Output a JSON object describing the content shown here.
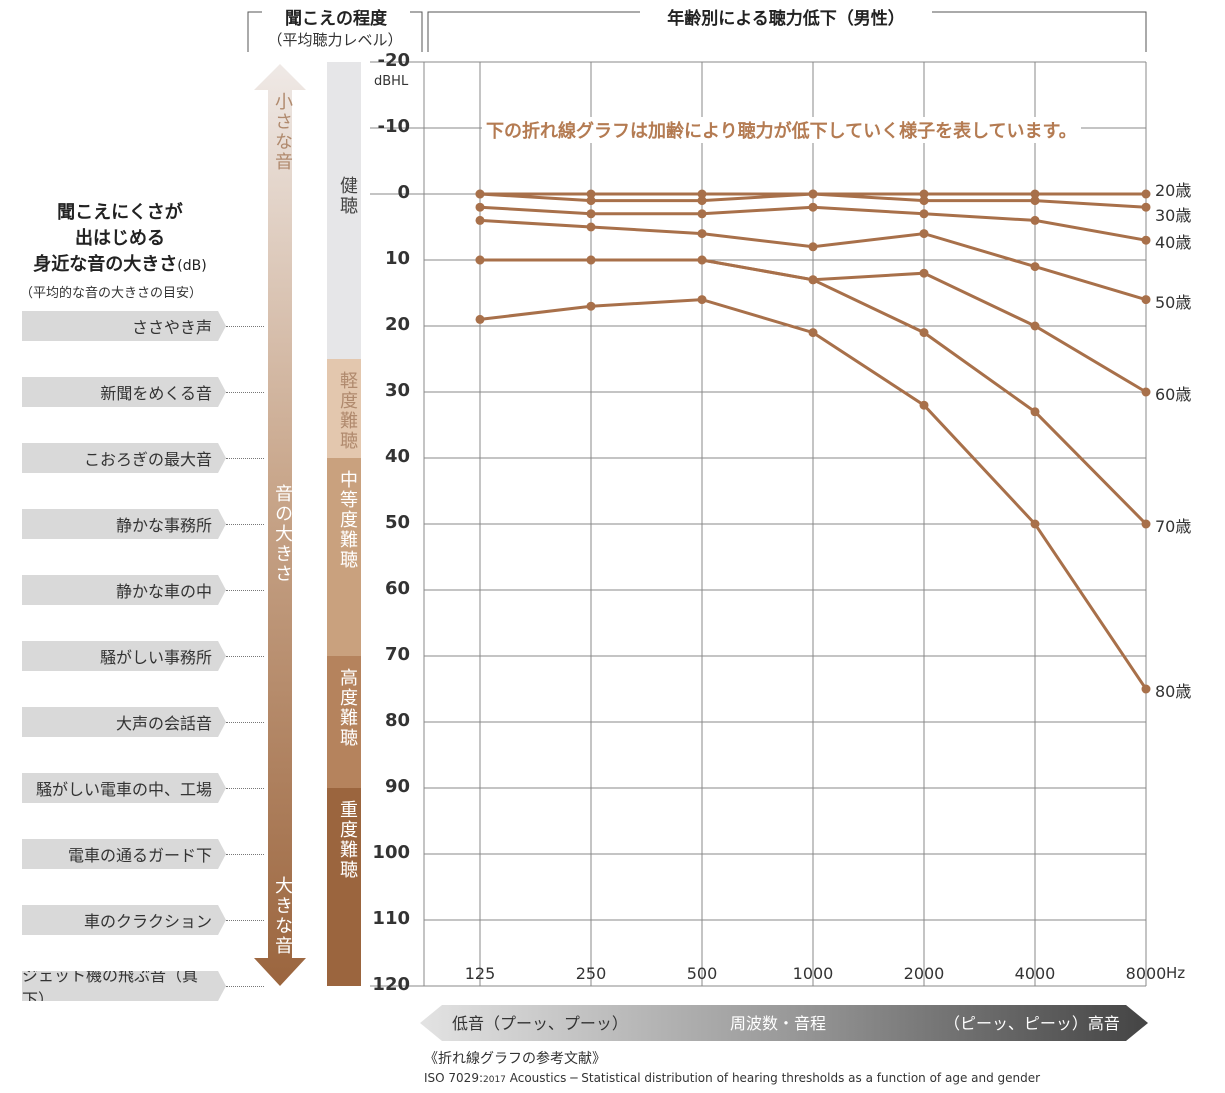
{
  "header": {
    "left_title": "聞こえの程度",
    "left_subtitle": "（平均聴力レベル）",
    "right_title": "年齢別による聴力低下（男性）"
  },
  "left_panel": {
    "heading_lines": [
      "聞こえにくさが",
      "出はじめる"
    ],
    "heading_line3": "身近な音の大きさ",
    "heading_unit": "(dB)",
    "subheading": "（平均的な音の大きさの目安）",
    "items": [
      {
        "label": "ささやき声",
        "db": 20
      },
      {
        "label": "新聞をめくる音",
        "db": 30
      },
      {
        "label": "こおろぎの最大音",
        "db": 40
      },
      {
        "label": "静かな事務所",
        "db": 50
      },
      {
        "label": "静かな車の中",
        "db": 60
      },
      {
        "label": "騒がしい事務所",
        "db": 70
      },
      {
        "label": "大声の会話音",
        "db": 80
      },
      {
        "label": "騒がしい電車の中、工場",
        "db": 90
      },
      {
        "label": "電車の通るガード下",
        "db": 100
      },
      {
        "label": "車のクラクション",
        "db": 110
      },
      {
        "label": "ジェット機の飛ぶ音（真下）",
        "db": 120
      }
    ]
  },
  "volume_arrow": {
    "top_label": "小さな音",
    "mid_label": "音の大きさ",
    "bottom_label": "大きな音"
  },
  "hearing_levels": [
    {
      "label": "健聴",
      "from": -20,
      "to": 25,
      "color": "#e6e6e8"
    },
    {
      "label": "軽度難聴",
      "from": 25,
      "to": 40,
      "color": "#e3c7ae"
    },
    {
      "label": "中等度難聴",
      "from": 40,
      "to": 70,
      "color": "#c9a17e"
    },
    {
      "label": "高度難聴",
      "from": 70,
      "to": 90,
      "color": "#b5835d"
    },
    {
      "label": "重度難聴",
      "from": 90,
      "to": 120,
      "color": "#9b653e"
    }
  ],
  "chart_note": "下の折れ線グラフは加齢により聴力が低下していく様子を表しています。",
  "frequency_bar": {
    "left": "低音（プーッ、プーッ）",
    "center": "周波数・音程",
    "right": "（ピーッ、ピーッ）高音"
  },
  "footer": {
    "ref_title": "《折れ線グラフの参考文献》",
    "ref_text_a": "ISO 7029:",
    "ref_text_small": "2017",
    "ref_text_b": " Acoustics ─ Statistical distribution of hearing thresholds as a function of age and gender"
  },
  "chart_data": {
    "type": "line",
    "title": "年齢別による聴力低下（男性）",
    "x": [
      "125",
      "250",
      "500",
      "1000",
      "2000",
      "4000",
      "8000"
    ],
    "x_unit": "Hz",
    "y_unit": "dBHL",
    "ylim": [
      -20,
      120
    ],
    "y_inverted": true,
    "yticks": [
      "-20",
      "-10",
      "0",
      "10",
      "20",
      "30",
      "40",
      "50",
      "60",
      "70",
      "80",
      "90",
      "100",
      "110",
      "120"
    ],
    "grid": true,
    "line_color": "#a8704a",
    "series": [
      {
        "name": "20歳",
        "values": [
          0,
          0,
          0,
          0,
          0,
          0,
          0
        ]
      },
      {
        "name": "30歳",
        "values": [
          0,
          1,
          1,
          0,
          1,
          1,
          2
        ]
      },
      {
        "name": "40歳",
        "values": [
          2,
          3,
          3,
          2,
          3,
          4,
          7
        ]
      },
      {
        "name": "50歳",
        "values": [
          4,
          5,
          6,
          8,
          6,
          11,
          16
        ]
      },
      {
        "name": "60歳",
        "values": [
          10,
          10,
          10,
          13,
          12,
          20,
          30
        ]
      },
      {
        "name": "70歳",
        "values": [
          10,
          10,
          10,
          13,
          21,
          33,
          50
        ]
      },
      {
        "name": "80歳",
        "values": [
          19,
          17,
          16,
          21,
          32,
          50,
          75
        ]
      }
    ]
  }
}
